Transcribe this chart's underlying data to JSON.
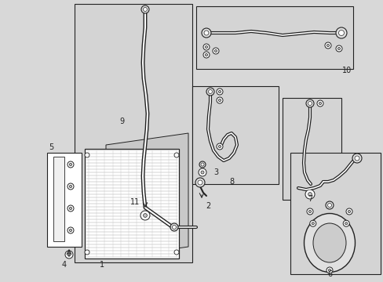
{
  "bg_color": "#d8d8d8",
  "white": "#ffffff",
  "black": "#222222",
  "gray_fill": "#c0c0c0",
  "gray_light": "#e0e0e0",
  "condenser_bg": "#d0d0d0",
  "box_bg": "#d8d8d8"
}
